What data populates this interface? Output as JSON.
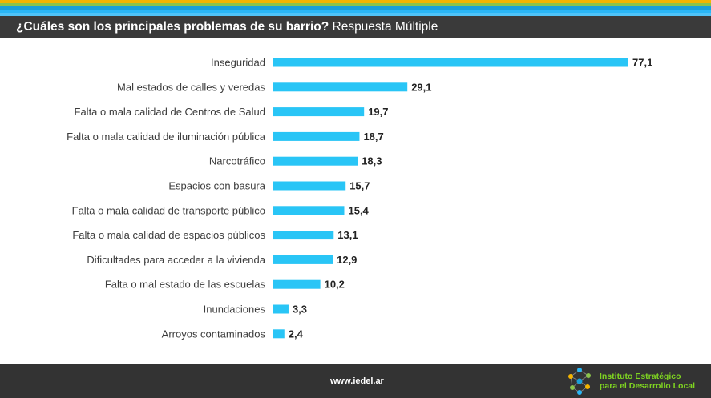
{
  "colors": {
    "stripes": [
      "#f4b400",
      "#8bc34a",
      "#1a9fd8",
      "#29b6f6",
      "#4fc3f7"
    ],
    "header_bg": "#3a3a3a",
    "bar": "#29c5f6",
    "footer_bg": "#333333",
    "logo_text": "#7ed321"
  },
  "header": {
    "question": "¿Cuáles son los principales problemas de su barrio?",
    "subtitle": "Respuesta Múltiple"
  },
  "chart_data": {
    "type": "bar",
    "orientation": "horizontal",
    "categories": [
      "Inseguridad",
      "Mal estados de calles y veredas",
      "Falta o mala calidad de Centros de Salud",
      "Falta o mala calidad de iluminación pública",
      "Narcotráfico",
      "Espacios con basura",
      "Falta o mala calidad de transporte público",
      "Falta o mala calidad de espacios públicos",
      "Dificultades para acceder a la vivienda",
      "Falta o mal estado de las escuelas",
      "Inundaciones",
      "Arroyos contaminados"
    ],
    "values": [
      77.1,
      29.1,
      19.7,
      18.7,
      18.3,
      15.7,
      15.4,
      13.1,
      12.9,
      10.2,
      3.3,
      2.4
    ],
    "value_labels": [
      "77,1",
      "29,1",
      "19,7",
      "18,7",
      "18,3",
      "15,7",
      "15,4",
      "13,1",
      "12,9",
      "10,2",
      "3,3",
      "2,4"
    ],
    "title": "",
    "xlabel": "",
    "ylabel": "",
    "grid": false,
    "legend": "none"
  },
  "footer": {
    "url": "www.iedel.ar",
    "org_line1": "Instituto Estratégico",
    "org_line2": "para el Desarrollo Local"
  }
}
